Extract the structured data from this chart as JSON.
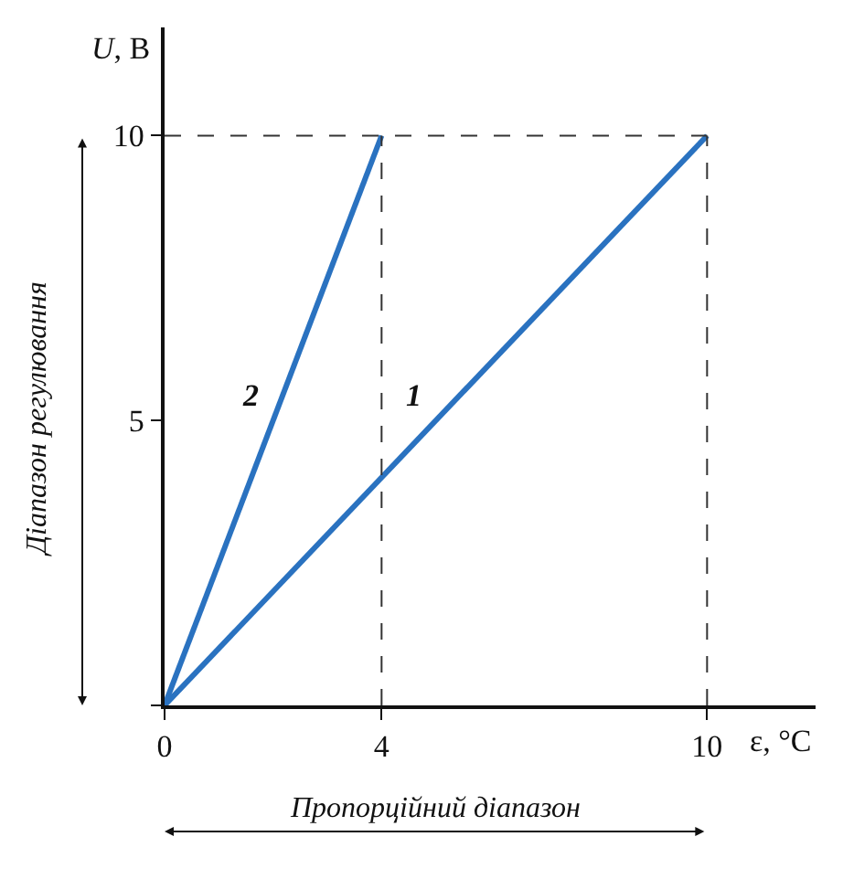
{
  "chart_data": {
    "type": "line",
    "xlabel": "ε, °С",
    "ylabel": "U, В",
    "x": [
      0,
      10
    ],
    "series": [
      {
        "name": "1",
        "color": "#2a72c0",
        "values": [
          0,
          10
        ]
      },
      {
        "name": "2",
        "color": "#2a72c0",
        "x": [
          0,
          4
        ],
        "values": [
          0,
          10
        ]
      }
    ],
    "xlim": [
      0,
      12
    ],
    "ylim": [
      0,
      11.9
    ],
    "xticks": [
      0,
      4,
      10
    ],
    "yticks": [
      {
        "value": 0,
        "label": null
      },
      5,
      10
    ],
    "ref_lines": [
      {
        "axis": "y",
        "value": 10,
        "line_style": "dashed",
        "color": "#333333"
      },
      {
        "axis": "x",
        "value": 4,
        "line_style": "dashed",
        "color": "#333333"
      },
      {
        "axis": "x",
        "value": 10,
        "line_style": "dashed",
        "color": "#333333"
      }
    ],
    "annotations": [
      "Діапазон регулювання",
      "Пропорційний діапазон"
    ],
    "line_style": "solid",
    "marker": "none",
    "legend": false
  }
}
